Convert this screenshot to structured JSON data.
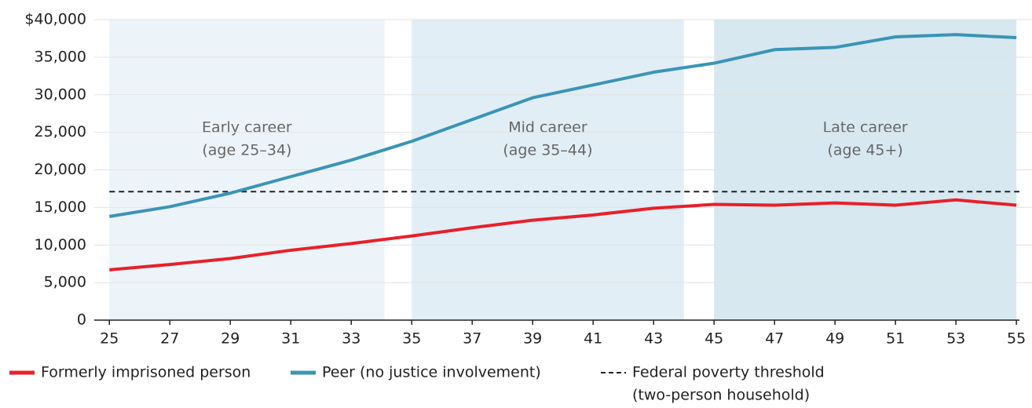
{
  "chart_data": {
    "type": "line",
    "x": [
      25,
      27,
      29,
      31,
      33,
      35,
      37,
      39,
      41,
      43,
      45,
      47,
      49,
      51,
      53,
      55
    ],
    "series": [
      {
        "name": "Formerly imprisoned person",
        "color": "#e8202a",
        "values": [
          6700,
          7400,
          8200,
          9300,
          10200,
          11200,
          12300,
          13300,
          14000,
          14900,
          15400,
          15300,
          15600,
          15300,
          16000,
          15300
        ]
      },
      {
        "name": "Peer (no justice involvement)",
        "color": "#3b94b6",
        "values": [
          13800,
          15100,
          16900,
          19100,
          21300,
          23800,
          26700,
          29600,
          31300,
          33000,
          34200,
          36000,
          36300,
          37700,
          38000,
          37600
        ]
      }
    ],
    "threshold": {
      "label_lines": [
        "Federal poverty threshold",
        "(two-person household)"
      ],
      "value": 17100,
      "color": "#222222"
    },
    "bands": [
      {
        "label_lines": [
          "Early career",
          "(age 25–34)"
        ],
        "start": 25,
        "end": 34.1,
        "color": "#edf4f9"
      },
      {
        "label_lines": [
          "Mid career",
          "(age 35–44)"
        ],
        "start": 35,
        "end": 44,
        "color": "#e1eef6"
      },
      {
        "label_lines": [
          "Late career",
          "(age 45+)"
        ],
        "start": 45,
        "end": 55,
        "color": "#d7e8f1"
      }
    ],
    "xlim": [
      24.5,
      55.1
    ],
    "xticks": [
      25,
      27,
      29,
      31,
      33,
      35,
      37,
      39,
      41,
      43,
      45,
      47,
      49,
      51,
      53,
      55
    ],
    "ylim": [
      0,
      40000
    ],
    "yticks": [
      0,
      {
        "value": 5000,
        "label": "5,000"
      },
      {
        "value": 10000,
        "label": "10,000"
      },
      {
        "value": 15000,
        "label": "15,000"
      },
      {
        "value": 20000,
        "label": "20,000"
      },
      {
        "value": 25000,
        "label": "25,000"
      },
      {
        "value": 30000,
        "label": "30,000"
      },
      {
        "value": 35000,
        "label": "35,000"
      },
      {
        "value": 40000,
        "label": "$40,000"
      }
    ],
    "grid": true
  }
}
